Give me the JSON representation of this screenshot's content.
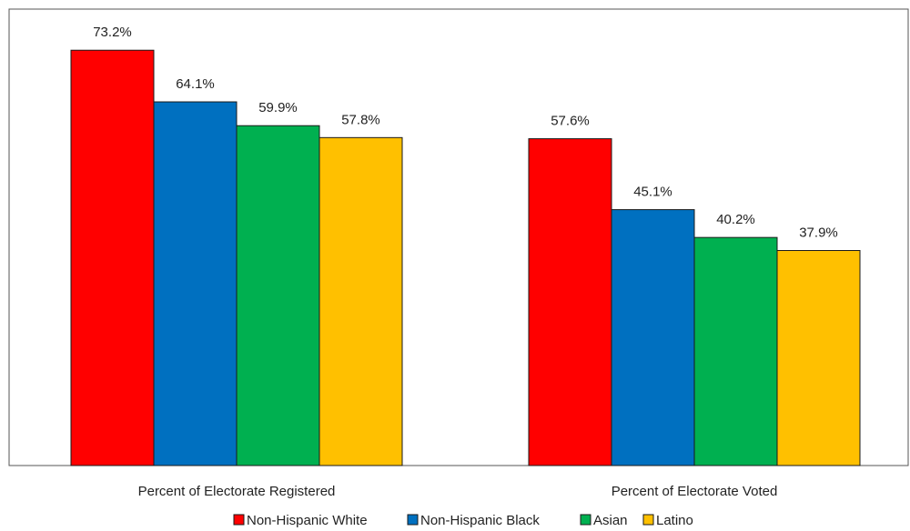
{
  "chart_data": {
    "type": "bar",
    "categories": [
      "Percent of Electorate Registered",
      "Percent of Electorate Voted"
    ],
    "series": [
      {
        "name": "Non-Hispanic White",
        "values": [
          73.2,
          57.6
        ],
        "labels": [
          "73.2%",
          "57.6%"
        ]
      },
      {
        "name": "Non-Hispanic Black",
        "values": [
          64.1,
          45.1
        ],
        "labels": [
          "64.1%",
          "45.1%"
        ]
      },
      {
        "name": "Asian",
        "values": [
          59.9,
          40.2
        ],
        "labels": [
          "59.9%",
          "40.2%"
        ]
      },
      {
        "name": "Latino",
        "values": [
          57.8,
          37.9
        ],
        "labels": [
          "57.8%",
          "37.9%"
        ]
      }
    ],
    "colors": [
      "#ff0000",
      "#0070c0",
      "#00b050",
      "#ffc000"
    ],
    "ylim": [
      0,
      85
    ],
    "grid": false,
    "legend": "bottom-center"
  }
}
